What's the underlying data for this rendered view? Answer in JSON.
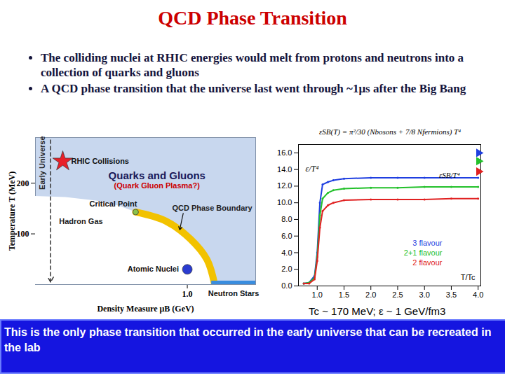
{
  "title": "QCD Phase Transition",
  "bullets": [
    "The colliding nuclei at RHIC energies would melt from protons and neutrons into a collection of quarks and gluons",
    "A QCD phase transition that the universe last went through ~1μs  after the Big Bang"
  ],
  "caption": "Tc ~ 170 MeV; ε ~ 1 GeV/fm3",
  "footer": "This is the only phase transition that occurred in  the early universe that can be recreated in the lab",
  "chart_data": [
    {
      "type": "line",
      "xlabel": "Density Measure μB (GeV)",
      "ylabel": "Temperature T (MeV)",
      "xlim": [
        0,
        1.45
      ],
      "ylim": [
        0,
        290
      ],
      "xticks": [
        {
          "value": 1,
          "label": "1.0"
        }
      ],
      "yticks": [
        100,
        200
      ],
      "regions": [
        {
          "name": "Hadron Gas",
          "color": "#ffffff",
          "x": [
            0,
            0.2,
            0.4,
            0.55,
            0.66,
            0.86,
            1.02,
            1.13,
            1.18
          ],
          "values": [
            174,
            172,
            165,
            155,
            143,
            125,
            90,
            49,
            0
          ]
        }
      ],
      "series": [
        {
          "name": "QCD Phase Boundary",
          "color": "#f2c200",
          "x": [
            0.66,
            0.86,
            1.02,
            1.13,
            1.18
          ],
          "values": [
            143,
            125,
            90,
            49,
            0
          ]
        },
        {
          "name": "Early Universe",
          "color": "#333333",
          "line_style": "dashed",
          "marker": "arrow",
          "x": [
            0.1,
            0.1
          ],
          "values": [
            285,
            5
          ]
        }
      ],
      "points": [
        {
          "label": "RHIC Collisions",
          "x": 0.18,
          "y": 243,
          "color": "#e8202a",
          "marker": "star"
        },
        {
          "label": "Critical Point",
          "x": 0.66,
          "y": 143,
          "color": "#8bc34a",
          "marker": "circle"
        },
        {
          "label": "Atomic Nuclei",
          "x": 1.0,
          "y": 30,
          "color": "#2a3bd0",
          "marker": "circle"
        }
      ],
      "bands": [
        {
          "name": "Neutron Stars",
          "color": "#3a8dde",
          "x": [
            1.16,
            1.45
          ],
          "values": [
            0,
            7
          ]
        }
      ],
      "annotations": [
        {
          "text": "Early Universe",
          "x": 0.045,
          "y": 240,
          "color": "#222222"
        },
        {
          "text": "Quarks and Gluons",
          "x": 0.8,
          "y": 215,
          "color": "#1a1a5a"
        },
        {
          "text": "(Quark Gluon Plasma?)",
          "x": 0.8,
          "y": 195,
          "color": "#cc0000"
        },
        {
          "text": "Hadron Gas",
          "x": 0.3,
          "y": 125,
          "color": "#222222"
        },
        {
          "text": "QCD Phase Boundary",
          "x": 0.9,
          "y": 150,
          "color": "#222222",
          "arrow_to": [
            0.95,
            108
          ]
        }
      ]
    },
    {
      "type": "line",
      "xlabel": "T/Tc",
      "ylabel": "ε/T⁴",
      "formula": "εSB(T) = π²/30 (Nbosons + 7/8 Nfermions) T⁴",
      "sb_label": "εSB/T⁴",
      "xlim": [
        0.65,
        4.05
      ],
      "ylim": [
        0,
        17
      ],
      "xticks": [
        {
          "value": 1,
          "label": "1.0"
        },
        {
          "value": 1.5,
          "label": "1.5"
        },
        {
          "value": 2,
          "label": "2.0"
        },
        {
          "value": 2.5,
          "label": "2.5"
        },
        {
          "value": 3,
          "label": "3.0"
        },
        {
          "value": 3.5,
          "label": "3.5"
        },
        {
          "value": 4,
          "label": "4.0"
        }
      ],
      "yticks": [
        {
          "value": 0,
          "label": "0.0"
        },
        {
          "value": 2,
          "label": "2.0"
        },
        {
          "value": 4,
          "label": "4.0"
        },
        {
          "value": 6,
          "label": "6.0"
        },
        {
          "value": 8,
          "label": "8.0"
        },
        {
          "value": 10,
          "label": "10.0"
        },
        {
          "value": 12,
          "label": "12.0"
        },
        {
          "value": 14,
          "label": "14.0"
        },
        {
          "value": 16,
          "label": "16.0"
        }
      ],
      "legend": "lower right",
      "x": [
        0.75,
        0.85,
        0.95,
        1.0,
        1.05,
        1.1,
        1.2,
        1.3,
        1.5,
        2.0,
        2.5,
        3.0,
        3.5,
        4.0
      ],
      "series": [
        {
          "name": "3 flavour",
          "color": "#1f3fe0",
          "sb": 16.0,
          "values": [
            0.3,
            0.4,
            1.2,
            4,
            10,
            12.2,
            12.5,
            12.7,
            12.9,
            13.0,
            13.0,
            13.0,
            13.0,
            13.0
          ]
        },
        {
          "name": "2+1 flavour",
          "color": "#22c02a",
          "sb": 15.0,
          "values": [
            0.3,
            0.4,
            1.0,
            3.5,
            8.5,
            10.5,
            11.2,
            11.5,
            11.7,
            11.8,
            11.8,
            11.9,
            11.9,
            11.9
          ]
        },
        {
          "name": "2 flavour",
          "color": "#e02020",
          "sb": 13.75,
          "values": [
            0.3,
            0.3,
            0.8,
            3,
            7,
            9,
            9.7,
            10.0,
            10.3,
            10.4,
            10.4,
            10.4,
            10.5,
            10.5
          ]
        }
      ]
    }
  ]
}
